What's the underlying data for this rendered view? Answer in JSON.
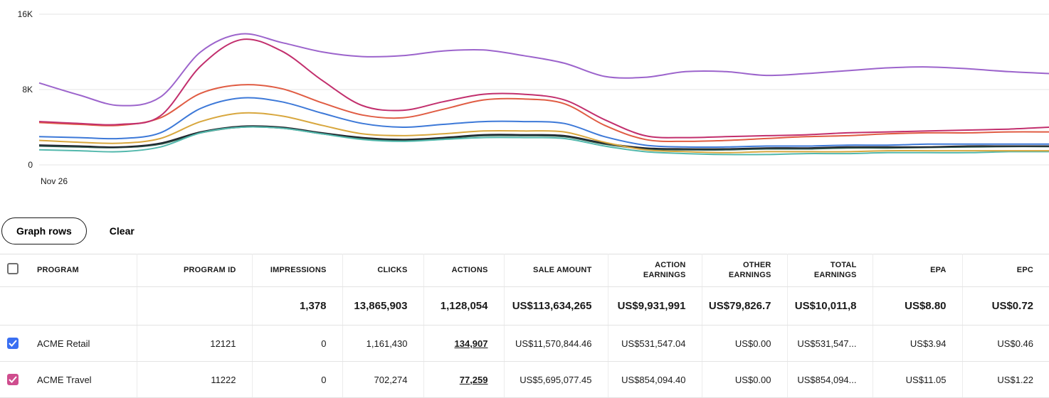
{
  "chart_data": {
    "type": "line",
    "title": "",
    "y_ticks": [
      "16K",
      "8K",
      "0"
    ],
    "x_tick_label": "Nov 26",
    "ylim": [
      0,
      16000
    ],
    "grid": true,
    "legend": "none",
    "series": [
      {
        "name": "dark-green",
        "color": "#2f5d50",
        "values": [
          2000,
          1900,
          1850,
          2200,
          3400,
          4000,
          3900,
          3300,
          2800,
          2600,
          2800,
          3100,
          3100,
          3000,
          2200,
          1700,
          1600,
          1600,
          1700,
          1700,
          1800,
          1800,
          1850,
          1900,
          1950,
          1950
        ]
      },
      {
        "name": "navy",
        "color": "#20262e",
        "values": [
          2100,
          2000,
          1900,
          2300,
          3500,
          4100,
          4000,
          3400,
          2900,
          2700,
          2900,
          3200,
          3200,
          3100,
          2300,
          1800,
          1700,
          1700,
          1800,
          1800,
          1900,
          1900,
          1900,
          2000,
          2000,
          2000
        ]
      },
      {
        "name": "teal",
        "color": "#52b8ac",
        "values": [
          1600,
          1500,
          1400,
          1900,
          3400,
          4000,
          3900,
          3300,
          2700,
          2500,
          2700,
          2900,
          2900,
          2800,
          2000,
          1400,
          1200,
          1100,
          1100,
          1200,
          1200,
          1300,
          1300,
          1300,
          1400,
          1400
        ]
      },
      {
        "name": "yellow",
        "color": "#d8a73e",
        "values": [
          2600,
          2400,
          2300,
          2800,
          4600,
          5500,
          5200,
          4200,
          3300,
          3100,
          3300,
          3600,
          3600,
          3500,
          2400,
          1600,
          1400,
          1300,
          1400,
          1400,
          1400,
          1500,
          1500,
          1500,
          1500,
          1500
        ]
      },
      {
        "name": "blue",
        "color": "#3d79d8",
        "values": [
          3000,
          2900,
          2800,
          3400,
          6000,
          7100,
          6700,
          5500,
          4400,
          4000,
          4300,
          4600,
          4600,
          4400,
          3000,
          2100,
          1900,
          1900,
          2000,
          2000,
          2100,
          2100,
          2200,
          2200,
          2200,
          2200
        ]
      },
      {
        "name": "orange",
        "color": "#e05c43",
        "values": [
          4500,
          4300,
          4200,
          5000,
          7600,
          8500,
          8100,
          6600,
          5300,
          5000,
          5900,
          6900,
          7000,
          6500,
          4200,
          2700,
          2500,
          2600,
          2800,
          3000,
          3100,
          3300,
          3400,
          3400,
          3500,
          3500
        ]
      },
      {
        "name": "crimson",
        "color": "#c22f6d",
        "values": [
          4600,
          4400,
          4300,
          5200,
          10500,
          13300,
          12100,
          9000,
          6300,
          5800,
          6700,
          7500,
          7500,
          6900,
          4800,
          3100,
          2900,
          3000,
          3100,
          3200,
          3400,
          3500,
          3600,
          3700,
          3800,
          4000
        ]
      },
      {
        "name": "purple",
        "color": "#9c64cc",
        "values": [
          8700,
          7400,
          6300,
          7200,
          12000,
          13900,
          13000,
          12000,
          11500,
          11600,
          12100,
          12200,
          11600,
          10800,
          9400,
          9300,
          9900,
          9900,
          9500,
          9700,
          10000,
          10300,
          10400,
          10200,
          9900,
          9700
        ]
      }
    ]
  },
  "controls": {
    "graph_rows_label": "Graph rows",
    "clear_label": "Clear"
  },
  "table": {
    "columns": [
      "PROGRAM",
      "PROGRAM ID",
      "IMPRESSIONS",
      "CLICKS",
      "ACTIONS",
      "SALE AMOUNT",
      "ACTION EARNINGS",
      "OTHER EARNINGS",
      "TOTAL EARNINGS",
      "EPA",
      "EPC"
    ],
    "totals": {
      "impressions": "1,378",
      "clicks": "13,865,903",
      "actions": "1,128,054",
      "sale_amount": "US$113,634,265",
      "action_earnings": "US$9,931,991",
      "other_earnings": "US$79,826.7",
      "total_earnings": "US$10,011,8",
      "epa": "US$8.80",
      "epc": "US$0.72"
    },
    "rows": [
      {
        "checked": true,
        "checkbox_color": "#3a6ff2",
        "program": "ACME Retail",
        "program_id": "12121",
        "impressions": "0",
        "clicks": "1,161,430",
        "actions": "134,907",
        "sale_amount": "US$11,570,844.46",
        "action_earnings": "US$531,547.04",
        "other_earnings": "US$0.00",
        "total_earnings": "US$531,547...",
        "epa": "US$3.94",
        "epc": "US$0.46"
      },
      {
        "checked": true,
        "checkbox_color": "#cf4d8e",
        "program": "ACME Travel",
        "program_id": "11222",
        "impressions": "0",
        "clicks": "702,274",
        "actions": "77,259",
        "sale_amount": "US$5,695,077.45",
        "action_earnings": "US$854,094.40",
        "other_earnings": "US$0.00",
        "total_earnings": "US$854,094...",
        "epa": "US$11.05",
        "epc": "US$1.22"
      }
    ]
  }
}
